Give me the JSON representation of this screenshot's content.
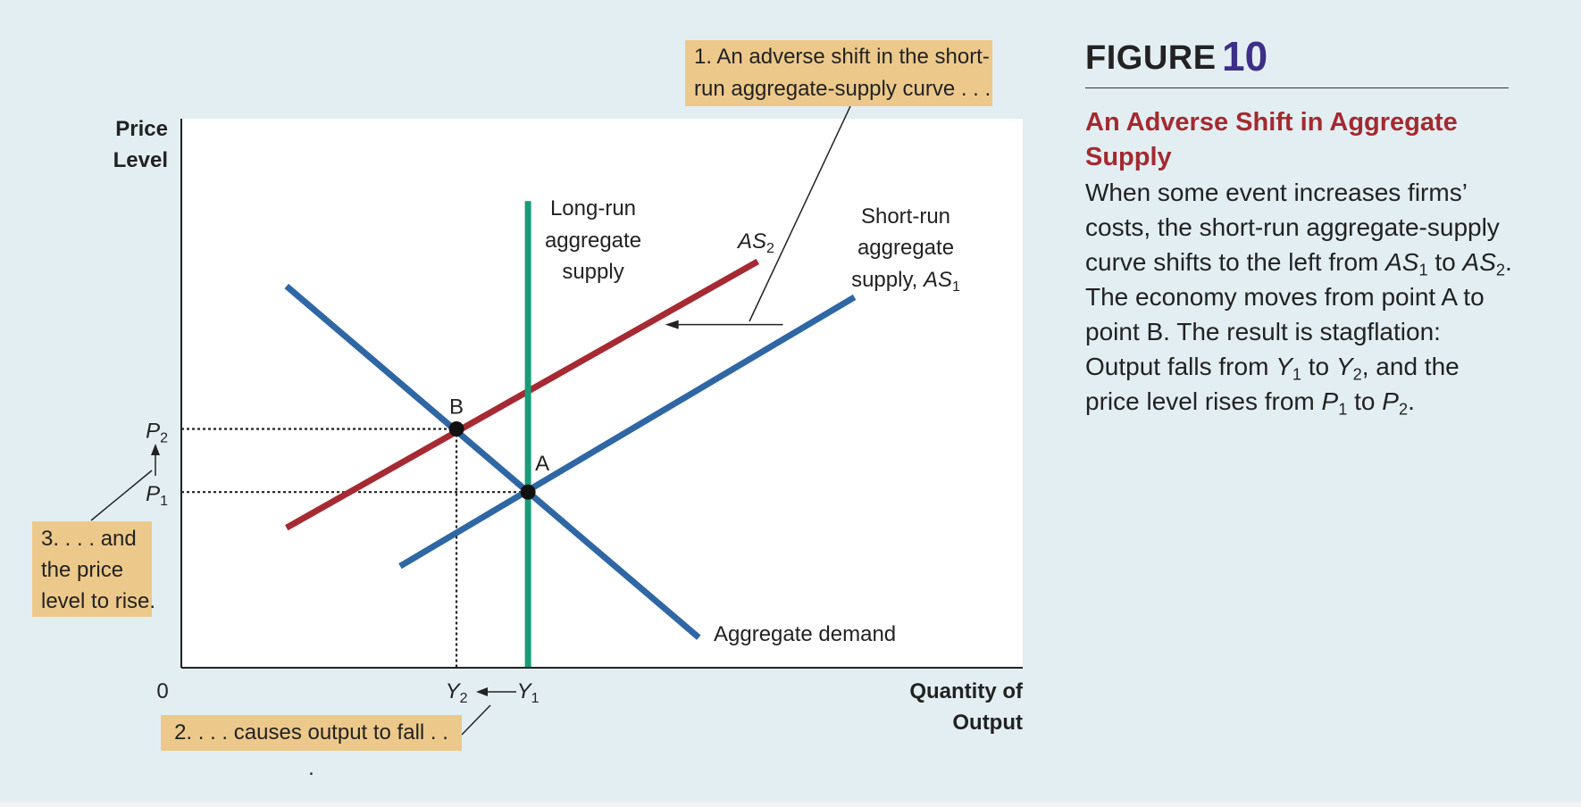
{
  "figure": {
    "label_word": "FIGURE",
    "label_number": "10",
    "title": "An Adverse Shift in Aggregate Supply",
    "caption_parts": [
      {
        "t": "When some event increases firms’ costs, the short-run aggregate-supply curve shifts to the left from "
      },
      {
        "t": "AS",
        "i": true
      },
      {
        "t": "1",
        "sub": true
      },
      {
        "t": " to "
      },
      {
        "t": "AS",
        "i": true
      },
      {
        "t": "2",
        "sub": true
      },
      {
        "t": ". The economy moves from point A to point B. The result is stagflation: Output falls from "
      },
      {
        "t": "Y",
        "i": true
      },
      {
        "t": "1",
        "sub": true
      },
      {
        "t": " to "
      },
      {
        "t": "Y",
        "i": true
      },
      {
        "t": "2",
        "sub": true
      },
      {
        "t": ", and the price level rises from "
      },
      {
        "t": "P",
        "i": true
      },
      {
        "t": "1",
        "sub": true
      },
      {
        "t": " to "
      },
      {
        "t": "P",
        "i": true
      },
      {
        "t": "2",
        "sub": true
      },
      {
        "t": "."
      }
    ]
  },
  "annotations": {
    "note1": [
      "1. An adverse shift in the short-",
      "run aggregate-supply curve . . ."
    ],
    "note2": "2. . . . causes output to fall . . .",
    "note3": [
      "3. . . . and",
      "the price",
      "level to rise."
    ]
  },
  "chart_data": {
    "type": "line",
    "title": "",
    "ylabel_lines": [
      "Price",
      "Level"
    ],
    "xlabel_lines": [
      "Quantity of",
      "Output"
    ],
    "origin_label": "0",
    "xlim": [
      0,
      100
    ],
    "ylim": [
      0,
      100
    ],
    "series": [
      {
        "name": "Aggregate demand",
        "color": "#2f67a4",
        "points": [
          [
            12.5,
            69.5
          ],
          [
            61.5,
            5.5
          ]
        ]
      },
      {
        "name": "AS2",
        "color": "#a62a33",
        "points": [
          [
            12.5,
            25.5
          ],
          [
            68.5,
            74
          ]
        ]
      },
      {
        "name": "Short-run aggregate supply, AS1",
        "color": "#2f67a4",
        "points": [
          [
            26,
            18.5
          ],
          [
            80,
            67.5
          ]
        ]
      },
      {
        "name": "Long-run aggregate supply",
        "color": "#1a9b78",
        "points": [
          [
            41.2,
            85
          ],
          [
            41.2,
            0
          ]
        ]
      }
    ],
    "series_labels": {
      "long_run": [
        "Long-run",
        "aggregate",
        "supply"
      ],
      "short_run": [
        "Short-run",
        "aggregate",
        "supply, "
      ],
      "short_run_symbol": {
        "base": "AS",
        "sub": "1"
      },
      "as2_symbol": {
        "base": "AS",
        "sub": "2"
      },
      "aggregate_demand": "Aggregate demand"
    },
    "points": [
      {
        "label": "A",
        "x": 41.2,
        "y": 32
      },
      {
        "label": "B",
        "x": 32.7,
        "y": 43.5
      }
    ],
    "axis_ticks": {
      "x": [
        {
          "base": "Y",
          "sub": "2",
          "value": 32.7
        },
        {
          "base": "Y",
          "sub": "1",
          "value": 41.2
        }
      ],
      "y": [
        {
          "base": "P",
          "sub": "2",
          "value": 43.5
        },
        {
          "base": "P",
          "sub": "1",
          "value": 32
        }
      ]
    },
    "shift_arrow": {
      "from": [
        71.5,
        62.5
      ],
      "to": [
        57.5,
        62.5
      ]
    },
    "colors": {
      "ad": "#2f67a4",
      "sras1": "#2f67a4",
      "as2": "#a62a33",
      "lras": "#1a9b78",
      "note_bg": "#ecc98a",
      "title": "#a32a2f",
      "fig_number": "#3d2e87"
    }
  }
}
